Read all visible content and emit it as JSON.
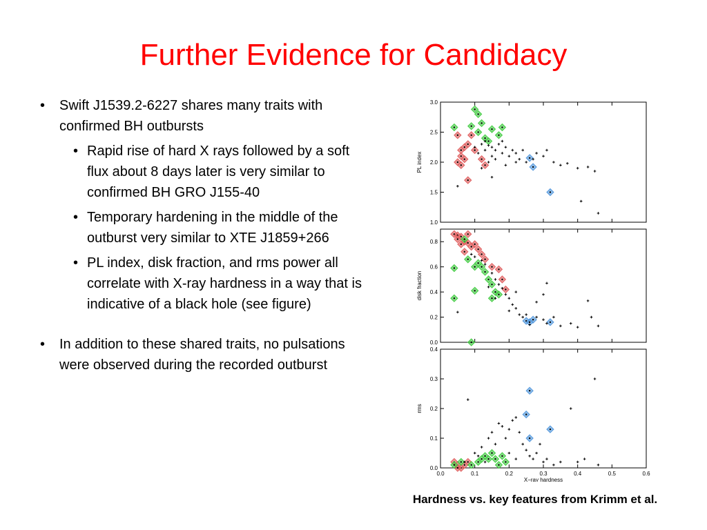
{
  "slide": {
    "title": "Further Evidence for Candidacy",
    "caption": "Hardness vs. key features from Krimm et al."
  },
  "bullets": {
    "b1": "Swift J1539.2-6227 shares many traits with confirmed BH outbursts",
    "sub": [
      "Rapid rise of hard X rays followed by a soft flux about 8 days later is very similar to confirmed BH GRO J155-40",
      "Temporary hardening in the middle of the outburst very similar to XTE J1859+266",
      "PL index, disk fraction, and rms power all correlate with X-ray hardness in a way that is indicative of a black hole (see figure)"
    ],
    "b2": "In addition to these shared traits, no pulsations were observed during the recorded outburst"
  },
  "chart_data": {
    "type": "scatter",
    "xlabel": "X−ray hardness",
    "xlim": [
      0,
      0.6
    ],
    "xticks": [
      "0.0",
      "0.1",
      "0.2",
      "0.3",
      "0.4",
      "0.5",
      "0.6"
    ],
    "colors": {
      "red": "#e06060",
      "green": "#44cc44",
      "blue": "#5599dd",
      "black": "#000000",
      "title": "#ff0000"
    },
    "panels": [
      {
        "ylabel": "PL index",
        "ylim": [
          1.0,
          3.0
        ],
        "yticks": [
          {
            "v": 3.0,
            "t": "3.0"
          },
          {
            "v": 2.5,
            "t": "2.5"
          },
          {
            "v": 2.0,
            "t": "2.0"
          },
          {
            "v": 1.5,
            "t": "1.5"
          },
          {
            "v": 1.0,
            "t": "1.0"
          }
        ],
        "series": {
          "red": [
            [
              0.05,
              2.45
            ],
            [
              0.06,
              2.2
            ],
            [
              0.05,
              2.0
            ],
            [
              0.07,
              2.05
            ],
            [
              0.06,
              1.95
            ],
            [
              0.08,
              2.3
            ],
            [
              0.09,
              2.45
            ],
            [
              0.1,
              2.2
            ],
            [
              0.12,
              2.05
            ],
            [
              0.13,
              1.95
            ],
            [
              0.08,
              1.7
            ],
            [
              0.06,
              2.1
            ],
            [
              0.07,
              2.25
            ]
          ],
          "green": [
            [
              0.1,
              2.88
            ],
            [
              0.11,
              2.8
            ],
            [
              0.09,
              2.6
            ],
            [
              0.12,
              2.65
            ],
            [
              0.11,
              2.5
            ],
            [
              0.15,
              2.55
            ],
            [
              0.17,
              2.45
            ],
            [
              0.18,
              2.58
            ],
            [
              0.04,
              2.58
            ],
            [
              0.14,
              2.35
            ],
            [
              0.13,
              2.4
            ]
          ],
          "blue": [
            [
              0.26,
              2.07
            ],
            [
              0.27,
              1.92
            ],
            [
              0.32,
              1.5
            ]
          ],
          "black": [
            [
              0.1,
              2.25
            ],
            [
              0.12,
              2.3
            ],
            [
              0.13,
              2.2
            ],
            [
              0.14,
              2.28
            ],
            [
              0.15,
              2.25
            ],
            [
              0.16,
              2.2
            ],
            [
              0.17,
              2.3
            ],
            [
              0.15,
              2.1
            ],
            [
              0.18,
              2.15
            ],
            [
              0.19,
              2.25
            ],
            [
              0.2,
              2.1
            ],
            [
              0.21,
              2.2
            ],
            [
              0.22,
              2.15
            ],
            [
              0.23,
              2.05
            ],
            [
              0.24,
              2.2
            ],
            [
              0.25,
              2.0
            ],
            [
              0.27,
              2.05
            ],
            [
              0.28,
              2.15
            ],
            [
              0.3,
              2.1
            ],
            [
              0.31,
              2.2
            ],
            [
              0.33,
              2.0
            ],
            [
              0.35,
              1.95
            ],
            [
              0.37,
              1.98
            ],
            [
              0.4,
              1.9
            ],
            [
              0.43,
              1.92
            ],
            [
              0.45,
              1.85
            ],
            [
              0.41,
              1.35
            ],
            [
              0.46,
              1.15
            ],
            [
              0.12,
              1.9
            ],
            [
              0.14,
              2.0
            ],
            [
              0.16,
              2.05
            ],
            [
              0.19,
              1.95
            ],
            [
              0.05,
              1.6
            ],
            [
              0.15,
              1.75
            ],
            [
              0.22,
              2.0
            ],
            [
              0.18,
              2.35
            ],
            [
              0.11,
              2.15
            ],
            [
              0.13,
              2.35
            ]
          ]
        }
      },
      {
        "ylabel": "disk fraction",
        "ylim": [
          0.0,
          0.9
        ],
        "yticks": [
          {
            "v": 0.8,
            "t": "0.8"
          },
          {
            "v": 0.6,
            "t": "0.6"
          },
          {
            "v": 0.4,
            "t": "0.4"
          },
          {
            "v": 0.2,
            "t": "0.2"
          },
          {
            "v": 0.0,
            "t": "0.0"
          }
        ],
        "series": {
          "red": [
            [
              0.04,
              0.86
            ],
            [
              0.05,
              0.85
            ],
            [
              0.06,
              0.84
            ],
            [
              0.05,
              0.82
            ],
            [
              0.07,
              0.8
            ],
            [
              0.08,
              0.79
            ],
            [
              0.09,
              0.76
            ],
            [
              0.1,
              0.78
            ],
            [
              0.11,
              0.74
            ],
            [
              0.08,
              0.86
            ],
            [
              0.06,
              0.78
            ],
            [
              0.07,
              0.72
            ],
            [
              0.12,
              0.7
            ],
            [
              0.13,
              0.66
            ],
            [
              0.15,
              0.6
            ],
            [
              0.17,
              0.58
            ],
            [
              0.18,
              0.5
            ],
            [
              0.19,
              0.42
            ]
          ],
          "green": [
            [
              0.07,
              0.82
            ],
            [
              0.04,
              0.59
            ],
            [
              0.08,
              0.66
            ],
            [
              0.1,
              0.6
            ],
            [
              0.11,
              0.63
            ],
            [
              0.12,
              0.6
            ],
            [
              0.13,
              0.56
            ],
            [
              0.14,
              0.5
            ],
            [
              0.15,
              0.46
            ],
            [
              0.16,
              0.4
            ],
            [
              0.17,
              0.38
            ],
            [
              0.15,
              0.35
            ],
            [
              0.1,
              0.41
            ],
            [
              0.04,
              0.35
            ],
            [
              0.09,
              0.0
            ]
          ],
          "blue": [
            [
              0.25,
              0.17
            ],
            [
              0.26,
              0.16
            ],
            [
              0.27,
              0.18
            ],
            [
              0.32,
              0.16
            ]
          ],
          "black": [
            [
              0.09,
              0.7
            ],
            [
              0.1,
              0.68
            ],
            [
              0.12,
              0.65
            ],
            [
              0.13,
              0.62
            ],
            [
              0.15,
              0.55
            ],
            [
              0.16,
              0.5
            ],
            [
              0.17,
              0.46
            ],
            [
              0.18,
              0.43
            ],
            [
              0.19,
              0.38
            ],
            [
              0.2,
              0.35
            ],
            [
              0.21,
              0.3
            ],
            [
              0.22,
              0.27
            ],
            [
              0.23,
              0.22
            ],
            [
              0.24,
              0.2
            ],
            [
              0.25,
              0.22
            ],
            [
              0.26,
              0.14
            ],
            [
              0.28,
              0.2
            ],
            [
              0.3,
              0.18
            ],
            [
              0.31,
              0.15
            ],
            [
              0.33,
              0.2
            ],
            [
              0.35,
              0.13
            ],
            [
              0.38,
              0.15
            ],
            [
              0.4,
              0.12
            ],
            [
              0.43,
              0.33
            ],
            [
              0.44,
              0.2
            ],
            [
              0.46,
              0.13
            ],
            [
              0.31,
              0.47
            ],
            [
              0.3,
              0.38
            ],
            [
              0.22,
              0.4
            ],
            [
              0.05,
              0.24
            ],
            [
              0.14,
              0.44
            ],
            [
              0.16,
              0.35
            ],
            [
              0.2,
              0.25
            ],
            [
              0.28,
              0.32
            ]
          ]
        }
      },
      {
        "ylabel": "rms",
        "ylim": [
          0.0,
          0.4
        ],
        "yticks": [
          {
            "v": 0.4,
            "t": "0.4"
          },
          {
            "v": 0.3,
            "t": "0.3"
          },
          {
            "v": 0.2,
            "t": "0.2"
          },
          {
            "v": 0.1,
            "t": "0.1"
          },
          {
            "v": 0.0,
            "t": "0.0"
          }
        ],
        "series": {
          "red": [
            [
              0.04,
              0.02
            ],
            [
              0.05,
              0.01
            ],
            [
              0.06,
              0.0
            ],
            [
              0.07,
              0.01
            ],
            [
              0.05,
              0.0
            ],
            [
              0.08,
              0.02
            ]
          ],
          "green": [
            [
              0.04,
              0.01
            ],
            [
              0.06,
              0.02
            ],
            [
              0.09,
              0.01
            ],
            [
              0.11,
              0.02
            ],
            [
              0.12,
              0.03
            ],
            [
              0.13,
              0.04
            ],
            [
              0.14,
              0.03
            ],
            [
              0.15,
              0.05
            ],
            [
              0.16,
              0.03
            ],
            [
              0.18,
              0.04
            ],
            [
              0.19,
              0.02
            ],
            [
              0.17,
              0.01
            ]
          ],
          "blue": [
            [
              0.26,
              0.26
            ],
            [
              0.25,
              0.18
            ],
            [
              0.26,
              0.1
            ],
            [
              0.32,
              0.13
            ]
          ],
          "black": [
            [
              0.08,
              0.23
            ],
            [
              0.12,
              0.07
            ],
            [
              0.14,
              0.1
            ],
            [
              0.15,
              0.12
            ],
            [
              0.16,
              0.08
            ],
            [
              0.17,
              0.15
            ],
            [
              0.18,
              0.14
            ],
            [
              0.19,
              0.1
            ],
            [
              0.2,
              0.13
            ],
            [
              0.21,
              0.16
            ],
            [
              0.22,
              0.17
            ],
            [
              0.23,
              0.12
            ],
            [
              0.24,
              0.08
            ],
            [
              0.25,
              0.06
            ],
            [
              0.26,
              0.04
            ],
            [
              0.27,
              0.03
            ],
            [
              0.28,
              0.05
            ],
            [
              0.3,
              0.02
            ],
            [
              0.31,
              0.03
            ],
            [
              0.33,
              0.01
            ],
            [
              0.35,
              0.02
            ],
            [
              0.38,
              0.2
            ],
            [
              0.4,
              0.02
            ],
            [
              0.42,
              0.03
            ],
            [
              0.45,
              0.3
            ],
            [
              0.46,
              0.01
            ],
            [
              0.1,
              0.05
            ],
            [
              0.13,
              0.02
            ],
            [
              0.11,
              0.04
            ],
            [
              0.07,
              0.02
            ],
            [
              0.2,
              0.05
            ],
            [
              0.22,
              0.03
            ],
            [
              0.29,
              0.08
            ]
          ]
        }
      }
    ]
  }
}
